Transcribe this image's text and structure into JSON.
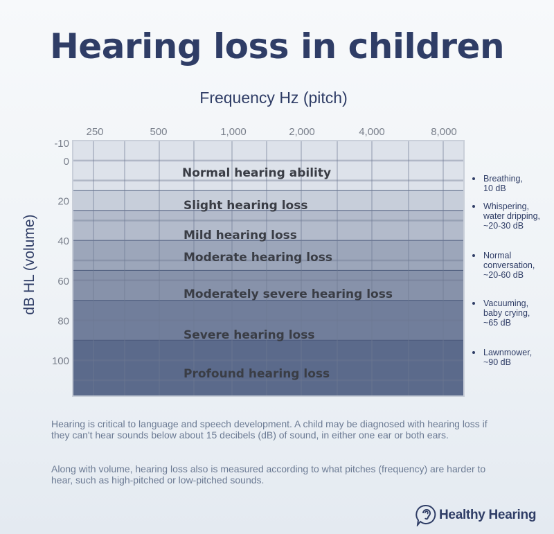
{
  "title": "Hearing loss in children",
  "chart_data": {
    "type": "heatmap",
    "title": "Hearing loss in children",
    "xlabel": "Frequency Hz (pitch)",
    "ylabel": "dB HL  (volume)",
    "x_ticks": [
      "250",
      "500",
      "1,000",
      "2,000",
      "4,000",
      "8,000"
    ],
    "y_ticks": [
      -10,
      0,
      20,
      40,
      60,
      80,
      100
    ],
    "y_tick_labels": [
      "-10",
      "0",
      "20",
      "40",
      "60",
      "80",
      "100"
    ],
    "ylim": [
      -10,
      118
    ],
    "grid": true,
    "bands": [
      {
        "label": "Normal hearing ability",
        "from": -10,
        "to": 15,
        "color": "#dde2ea"
      },
      {
        "label": "Slight hearing loss",
        "from": 15,
        "to": 25,
        "color": "#c7ceda"
      },
      {
        "label": "Mild hearing loss",
        "from": 25,
        "to": 40,
        "color": "#b3bbcb"
      },
      {
        "label": "Moderate hearing loss",
        "from": 40,
        "to": 55,
        "color": "#9ca6ba"
      },
      {
        "label": "Moderately severe hearing loss",
        "from": 55,
        "to": 70,
        "color": "#8792aa"
      },
      {
        "label": "Severe hearing loss",
        "from": 70,
        "to": 90,
        "color": "#717e9b"
      },
      {
        "label": "Profound hearing loss",
        "from": 90,
        "to": 118,
        "color": "#5b6a8b"
      }
    ]
  },
  "annotations": [
    {
      "text": "Breathing, 10 dB",
      "lines": [
        "Breathing,",
        "10 dB"
      ]
    },
    {
      "text": "Whispering, water dripping, ~20-30 dB",
      "lines": [
        "Whispering,",
        "water dripping,",
        "~20-30 dB"
      ]
    },
    {
      "text": "Normal conversation, ~20-60 dB",
      "lines": [
        "Normal",
        "conversation,",
        "~20-60 dB"
      ]
    },
    {
      "text": "Vacuuming, baby crying, ~65 dB",
      "lines": [
        "Vacuuming,",
        "baby crying,",
        "~65 dB"
      ]
    },
    {
      "text": "Lawnmower, ~90 dB",
      "lines": [
        "Lawnmower,",
        "~90 dB"
      ]
    }
  ],
  "paragraphs": [
    "Hearing is critical to language and speech development. A child may be diagnosed with hearing loss if they can't hear sounds below about 15 decibels (dB) of sound, in either one ear or both ears.",
    "Along with volume, hearing loss also is measured according to what pitches (frequency) are harder to hear, such as high-pitched or low-pitched sounds."
  ],
  "logo": {
    "text": "Healthy Hearing"
  },
  "colors": {
    "navy": "#2f3d66",
    "text_gray": "#6b7a93"
  }
}
